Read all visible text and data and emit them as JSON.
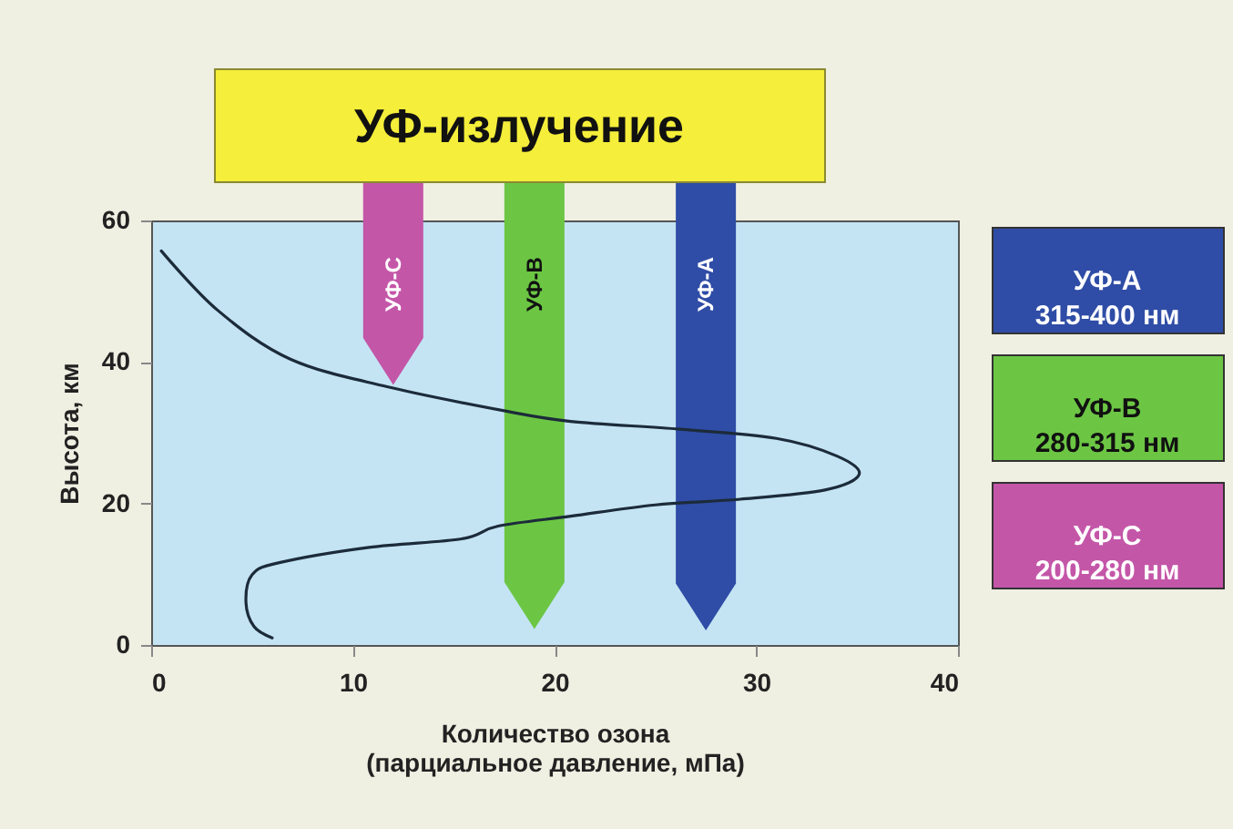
{
  "chart_data": {
    "type": "line",
    "title": "УФ-излучение",
    "xlabel": "Количество озона\n(парциальное давление, мПа)",
    "ylabel": "Высота, км",
    "xlim": [
      0,
      40
    ],
    "ylim": [
      0,
      60
    ],
    "xticks": [
      0,
      10,
      20,
      30,
      40
    ],
    "yticks": [
      0,
      20,
      40,
      60
    ],
    "grid": false,
    "legend": "right",
    "series": [
      {
        "color": "#1c2b3a",
        "x": [
          0.5,
          3.3,
          6.9,
          11.7,
          17.5,
          20.8,
          26.2,
          31.0,
          34.0,
          35.1,
          33.4,
          29.2,
          25.0,
          20.8,
          17.2,
          15.4,
          10.8,
          6.3,
          5.0,
          4.7,
          5.1,
          6.0
        ],
        "values": [
          55.7,
          47.3,
          40.4,
          36.5,
          33.1,
          31.6,
          30.5,
          29.2,
          26.7,
          24.1,
          21.9,
          20.6,
          19.8,
          18.2,
          16.8,
          15.0,
          13.8,
          11.6,
          9.9,
          6.0,
          2.6,
          1.0
        ]
      },
      {
        "type": "bar",
        "name": "УФ-А",
        "color": "#2f4da6",
        "x": [
          27.5
        ],
        "base": [
          2.3
        ],
        "values": [
          57.7
        ]
      },
      {
        "type": "bar",
        "name": "УФ-В",
        "color": "#6cc644",
        "x": [
          19.0
        ],
        "base": [
          2.5
        ],
        "values": [
          57.5
        ]
      },
      {
        "type": "bar",
        "name": "УФ-С",
        "color": "#c456a8",
        "x": [
          12.0
        ],
        "base": [
          37.0
        ],
        "values": [
          23.0
        ]
      }
    ],
    "annotations": [
      "315-400 нм",
      "280-315 нм",
      "200-280 нм"
    ]
  }
}
